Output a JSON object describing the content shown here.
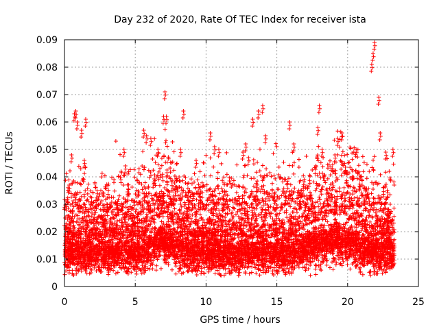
{
  "chart_data": {
    "type": "scatter",
    "title": "Day 232 of 2020, Rate Of TEC Index for receiver ista",
    "xlabel": "GPS time / hours",
    "ylabel": "ROTI / TECUs",
    "xlim": [
      0,
      25
    ],
    "ylim": [
      0,
      0.09
    ],
    "x_ticks": [
      "0",
      "5",
      "10",
      "15",
      "20",
      "25"
    ],
    "y_ticks": [
      "0",
      "0.01",
      "0.02",
      "0.03",
      "0.04",
      "0.05",
      "0.06",
      "0.07",
      "0.08",
      "0.09"
    ],
    "grid": true,
    "marker": "+",
    "colors": {
      "points": "#ff0000"
    },
    "series": [
      {
        "x": [
          0.5,
          0.7,
          0.8,
          0.9,
          1.2,
          1.4,
          1.5,
          2.3,
          3.0,
          4.2,
          4.3,
          5.6,
          5.8,
          6.1,
          6.6,
          7.0,
          7.1,
          7.2,
          8.2,
          8.4,
          9.3,
          10.3,
          10.6,
          10.9,
          12.6,
          12.8,
          13.0,
          13.3,
          13.7,
          14.0,
          14.2,
          15.9,
          16.2,
          17.9,
          18.0,
          18.2,
          19.1,
          19.3,
          19.6,
          20.6,
          21.7,
          21.8,
          21.9,
          22.2,
          22.3,
          22.7,
          23.2
        ],
        "y": [
          0.048,
          0.063,
          0.064,
          0.06,
          0.057,
          0.046,
          0.061,
          0.035,
          0.03,
          0.05,
          0.044,
          0.057,
          0.055,
          0.054,
          0.05,
          0.062,
          0.071,
          0.062,
          0.05,
          0.064,
          0.046,
          0.056,
          0.051,
          0.05,
          0.049,
          0.052,
          0.047,
          0.061,
          0.064,
          0.066,
          0.055,
          0.06,
          0.052,
          0.058,
          0.066,
          0.05,
          0.048,
          0.054,
          0.056,
          0.05,
          0.081,
          0.085,
          0.089,
          0.069,
          0.056,
          0.049,
          0.05
        ]
      }
    ]
  }
}
